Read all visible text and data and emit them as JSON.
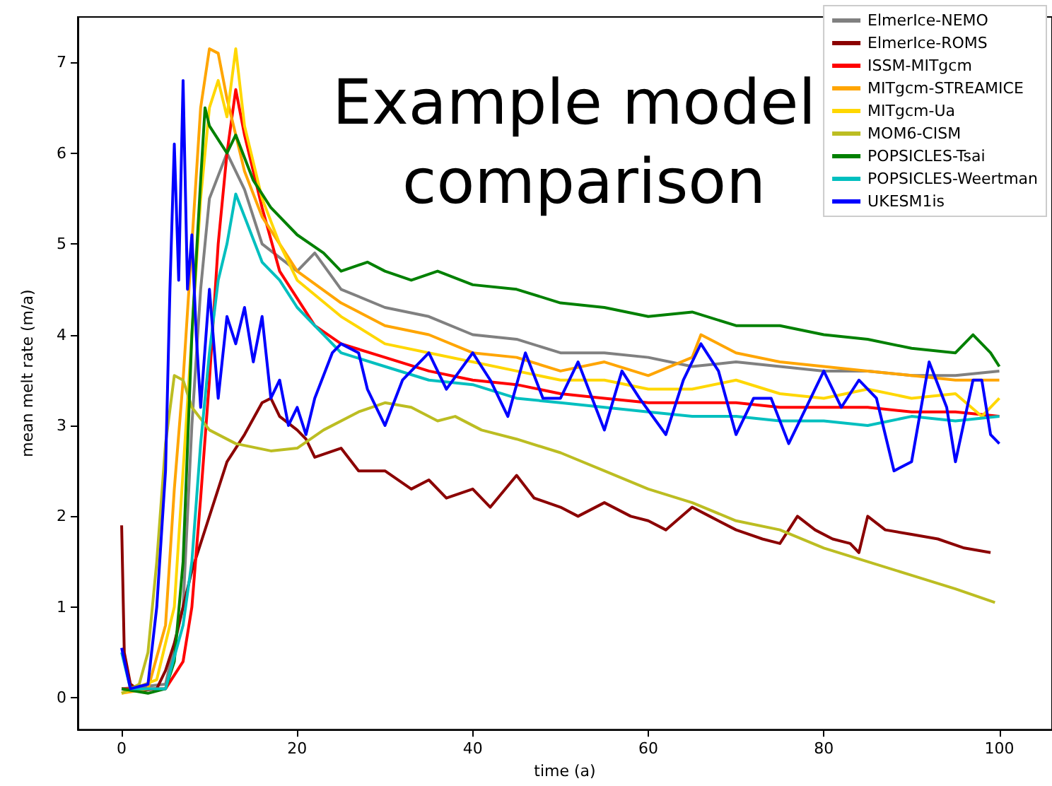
{
  "chart_data": {
    "type": "line",
    "title": "Example model comparison",
    "xlabel": "time (a)",
    "ylabel": "mean melt rate (m/a)",
    "xlim": [
      -5,
      106
    ],
    "ylim": [
      -0.35,
      7.5
    ],
    "xticks": [
      0,
      20,
      40,
      60,
      80,
      100
    ],
    "yticks": [
      0,
      1,
      2,
      3,
      4,
      5,
      6,
      7
    ],
    "grid": false,
    "legend": "top right",
    "marker": "none",
    "line_style": "solid",
    "series": [
      {
        "name": "ElmerIce-NEMO",
        "color": "#808080",
        "x": [
          0,
          5,
          7,
          8,
          9,
          10,
          12,
          14,
          16,
          20,
          22,
          25,
          30,
          35,
          40,
          45,
          50,
          55,
          60,
          65,
          70,
          75,
          80,
          85,
          90,
          95,
          100
        ],
        "values": [
          0.1,
          0.15,
          1.0,
          3.0,
          4.5,
          5.5,
          6.0,
          5.6,
          5.0,
          4.7,
          4.9,
          4.5,
          4.3,
          4.2,
          4.0,
          3.95,
          3.8,
          3.8,
          3.75,
          3.65,
          3.7,
          3.65,
          3.6,
          3.6,
          3.55,
          3.55,
          3.6
        ]
      },
      {
        "name": "ElmerIce-ROMS",
        "color": "#8b0000",
        "x": [
          0,
          0.3,
          1,
          2,
          4,
          5,
          6,
          7,
          8,
          10,
          12,
          14,
          16,
          17,
          18,
          20,
          21,
          22,
          25,
          27,
          30,
          33,
          35,
          37,
          40,
          42,
          45,
          47,
          50,
          52,
          55,
          58,
          60,
          62,
          65,
          67,
          70,
          73,
          75,
          77,
          79,
          81,
          83,
          84,
          85,
          87,
          90,
          93,
          96,
          99
        ],
        "values": [
          1.9,
          0.5,
          0.15,
          0.08,
          0.1,
          0.3,
          0.6,
          1.0,
          1.4,
          2.0,
          2.6,
          2.9,
          3.25,
          3.3,
          3.1,
          2.95,
          2.85,
          2.65,
          2.75,
          2.5,
          2.5,
          2.3,
          2.4,
          2.2,
          2.3,
          2.1,
          2.45,
          2.2,
          2.1,
          2.0,
          2.15,
          2.0,
          1.95,
          1.85,
          2.1,
          2.0,
          1.85,
          1.75,
          1.7,
          2.0,
          1.85,
          1.75,
          1.7,
          1.6,
          2.0,
          1.85,
          1.8,
          1.75,
          1.65,
          1.6
        ]
      },
      {
        "name": "ISSM-MITgcm",
        "color": "#ff0000",
        "x": [
          0,
          5,
          7,
          8,
          9,
          10,
          11,
          12,
          13,
          14,
          16,
          18,
          20,
          22,
          25,
          30,
          35,
          40,
          45,
          50,
          55,
          60,
          65,
          70,
          75,
          80,
          85,
          90,
          95,
          100
        ],
        "values": [
          0.1,
          0.1,
          0.4,
          1.0,
          2.2,
          3.5,
          5.0,
          6.0,
          6.7,
          6.2,
          5.4,
          4.7,
          4.4,
          4.1,
          3.9,
          3.75,
          3.6,
          3.5,
          3.45,
          3.35,
          3.3,
          3.25,
          3.25,
          3.25,
          3.2,
          3.2,
          3.2,
          3.15,
          3.15,
          3.1
        ]
      },
      {
        "name": "MITgcm-STREAMICE",
        "color": "#ffa500",
        "x": [
          0,
          3,
          5,
          6,
          7,
          8,
          9,
          10,
          11,
          12,
          14,
          16,
          18,
          20,
          25,
          30,
          35,
          40,
          45,
          50,
          55,
          60,
          65,
          66,
          70,
          75,
          80,
          85,
          90,
          95,
          100
        ],
        "values": [
          0.05,
          0.1,
          0.8,
          2.3,
          3.5,
          5.0,
          6.5,
          7.15,
          7.1,
          6.6,
          5.8,
          5.3,
          5.0,
          4.7,
          4.35,
          4.1,
          4.0,
          3.8,
          3.75,
          3.6,
          3.7,
          3.55,
          3.75,
          4.0,
          3.8,
          3.7,
          3.65,
          3.6,
          3.55,
          3.5,
          3.5
        ]
      },
      {
        "name": "MITgcm-Ua",
        "color": "#ffd700",
        "x": [
          0,
          4,
          6,
          7,
          8,
          9,
          10,
          11,
          12,
          13,
          14,
          16,
          18,
          20,
          25,
          30,
          35,
          40,
          45,
          50,
          55,
          60,
          65,
          70,
          75,
          80,
          85,
          90,
          95,
          98,
          100
        ],
        "values": [
          0.05,
          0.2,
          1.0,
          2.5,
          4.0,
          5.5,
          6.5,
          6.8,
          6.4,
          7.15,
          6.3,
          5.5,
          5.0,
          4.6,
          4.2,
          3.9,
          3.8,
          3.7,
          3.6,
          3.5,
          3.5,
          3.4,
          3.4,
          3.5,
          3.35,
          3.3,
          3.4,
          3.3,
          3.35,
          3.1,
          3.3
        ]
      },
      {
        "name": "MOM6-CISM",
        "color": "#bcbd22",
        "x": [
          0,
          2,
          3,
          4,
          5,
          6,
          7,
          8,
          10,
          13,
          17,
          20,
          23,
          27,
          30,
          33,
          36,
          38,
          41,
          45,
          50,
          55,
          60,
          65,
          70,
          75,
          80,
          85,
          90,
          95,
          99.5
        ],
        "values": [
          0.05,
          0.15,
          0.5,
          1.5,
          2.8,
          3.55,
          3.5,
          3.2,
          2.95,
          2.8,
          2.72,
          2.75,
          2.95,
          3.15,
          3.25,
          3.2,
          3.05,
          3.1,
          2.95,
          2.85,
          2.7,
          2.5,
          2.3,
          2.15,
          1.95,
          1.85,
          1.65,
          1.5,
          1.35,
          1.2,
          1.05
        ]
      },
      {
        "name": "POPSICLES-Tsai",
        "color": "#008000",
        "x": [
          0,
          3,
          5,
          6,
          7,
          8,
          9,
          9.5,
          10,
          12,
          13,
          15,
          17,
          20,
          23,
          25,
          28,
          30,
          33,
          36,
          40,
          45,
          50,
          55,
          60,
          65,
          70,
          75,
          80,
          85,
          90,
          95,
          97,
          99,
          100
        ],
        "values": [
          0.1,
          0.05,
          0.1,
          0.4,
          1.5,
          4.0,
          5.7,
          6.5,
          6.3,
          6.0,
          6.2,
          5.7,
          5.4,
          5.1,
          4.9,
          4.7,
          4.8,
          4.7,
          4.6,
          4.7,
          4.55,
          4.5,
          4.35,
          4.3,
          4.2,
          4.25,
          4.1,
          4.1,
          4.0,
          3.95,
          3.85,
          3.8,
          4.0,
          3.8,
          3.65
        ]
      },
      {
        "name": "POPSICLES-Weertman",
        "color": "#00bfbf",
        "x": [
          0,
          1,
          5,
          7,
          8,
          9,
          10,
          11,
          12,
          13,
          14,
          16,
          18,
          20,
          25,
          30,
          35,
          40,
          45,
          50,
          55,
          60,
          65,
          70,
          75,
          80,
          85,
          90,
          95,
          100
        ],
        "values": [
          0.5,
          0.1,
          0.1,
          0.8,
          1.5,
          2.8,
          3.8,
          4.6,
          5.0,
          5.55,
          5.3,
          4.8,
          4.6,
          4.3,
          3.8,
          3.65,
          3.5,
          3.45,
          3.3,
          3.25,
          3.2,
          3.15,
          3.1,
          3.1,
          3.05,
          3.05,
          3.0,
          3.1,
          3.05,
          3.1
        ]
      },
      {
        "name": "UKESM1is",
        "color": "#0000ff",
        "x": [
          0,
          1,
          3,
          4,
          5,
          5.5,
          6,
          6.5,
          7,
          7.5,
          8,
          8.5,
          9,
          10,
          11,
          12,
          13,
          14,
          15,
          16,
          17,
          18,
          19,
          20,
          21,
          22,
          24,
          25,
          27,
          28,
          30,
          32,
          35,
          37,
          40,
          42,
          44,
          46,
          48,
          50,
          52,
          54,
          55,
          57,
          59,
          62,
          64,
          66,
          68,
          70,
          72,
          74,
          76,
          78,
          80,
          82,
          84,
          86,
          88,
          90,
          92,
          94,
          95,
          97,
          98,
          99,
          100
        ],
        "values": [
          0.55,
          0.1,
          0.15,
          1.0,
          2.5,
          4.5,
          6.1,
          4.6,
          6.8,
          4.5,
          5.1,
          4.0,
          3.2,
          4.5,
          3.3,
          4.2,
          3.9,
          4.3,
          3.7,
          4.2,
          3.3,
          3.5,
          3.0,
          3.2,
          2.9,
          3.3,
          3.8,
          3.9,
          3.8,
          3.4,
          3.0,
          3.5,
          3.8,
          3.4,
          3.8,
          3.5,
          3.1,
          3.8,
          3.3,
          3.3,
          3.7,
          3.2,
          2.95,
          3.6,
          3.3,
          2.9,
          3.5,
          3.9,
          3.6,
          2.9,
          3.3,
          3.3,
          2.8,
          3.2,
          3.6,
          3.2,
          3.5,
          3.3,
          2.5,
          2.6,
          3.7,
          3.2,
          2.6,
          3.5,
          3.5,
          2.9,
          2.8
        ]
      }
    ]
  }
}
